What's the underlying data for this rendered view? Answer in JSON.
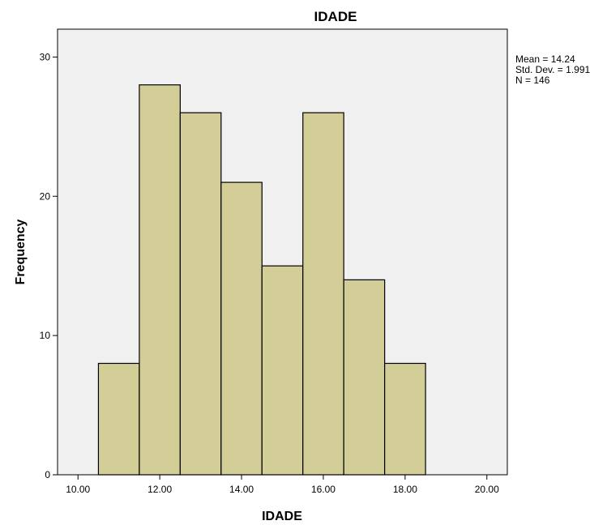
{
  "chart_data": {
    "type": "bar",
    "title": "IDADE",
    "xlabel": "IDADE",
    "ylabel": "Frequency",
    "bins": [
      {
        "from": 10.5,
        "to": 11.5,
        "value": 8
      },
      {
        "from": 11.5,
        "to": 12.5,
        "value": 28
      },
      {
        "from": 12.5,
        "to": 13.5,
        "value": 26
      },
      {
        "from": 13.5,
        "to": 14.5,
        "value": 21
      },
      {
        "from": 14.5,
        "to": 15.5,
        "value": 15
      },
      {
        "from": 15.5,
        "to": 16.5,
        "value": 26
      },
      {
        "from": 16.5,
        "to": 17.5,
        "value": 14
      },
      {
        "from": 17.5,
        "to": 18.5,
        "value": 8
      }
    ],
    "xlim": [
      9.5,
      20.5
    ],
    "ylim": [
      0,
      32
    ],
    "x_ticks": [
      "10.00",
      "12.00",
      "14.00",
      "16.00",
      "18.00",
      "20.00"
    ],
    "y_ticks": [
      "0",
      "10",
      "20",
      "30"
    ],
    "stats": [
      "Mean = 14.24",
      "Std. Dev. = 1.991",
      "N = 146"
    ],
    "bar_color": "#d3ce97",
    "bar_edge_color": "#000000",
    "plot_background": "#f0f0f0",
    "grid": false
  }
}
